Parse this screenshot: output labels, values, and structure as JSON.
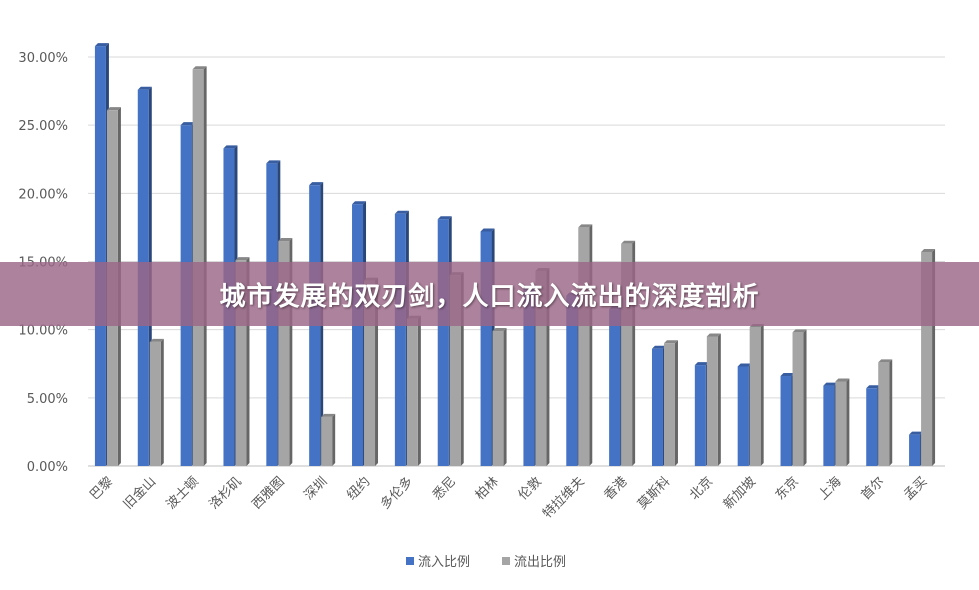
{
  "banner": {
    "title": "城市发展的双刃剑，人口流入流出的深度剖析"
  },
  "chart_data": {
    "type": "bar",
    "categories": [
      "巴黎",
      "旧金山",
      "波士顿",
      "洛杉矶",
      "西雅图",
      "深圳",
      "纽约",
      "多伦多",
      "悉尼",
      "柏林",
      "伦敦",
      "特拉维夫",
      "香港",
      "莫斯科",
      "北京",
      "新加坡",
      "东京",
      "上海",
      "首尔",
      "孟买"
    ],
    "series": [
      {
        "name": "流入比例",
        "color": "#4472C4",
        "values": [
          30.8,
          27.6,
          25.0,
          23.3,
          22.2,
          20.6,
          19.2,
          18.5,
          18.1,
          17.2,
          13.0,
          12.5,
          11.5,
          8.6,
          7.4,
          7.3,
          6.6,
          5.9,
          5.7,
          2.3
        ]
      },
      {
        "name": "流出比例",
        "color": "#A5A5A5",
        "values": [
          26.1,
          9.1,
          29.1,
          15.1,
          16.5,
          3.6,
          13.6,
          10.8,
          14.0,
          9.9,
          14.3,
          17.5,
          16.3,
          9.0,
          9.5,
          10.2,
          9.8,
          6.2,
          7.6,
          15.7
        ]
      }
    ],
    "y_ticks": [
      "0.00%",
      "5.00%",
      "10.00%",
      "15.00%",
      "20.00%",
      "25.00%",
      "30.00%"
    ],
    "ylim": [
      0,
      30
    ],
    "grid": true,
    "legend_position": "bottom"
  }
}
